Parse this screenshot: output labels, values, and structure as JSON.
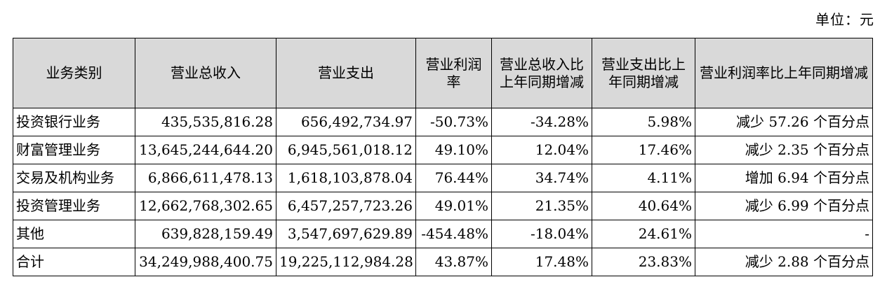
{
  "unit_label": "单位：元",
  "table": {
    "headers": [
      "业务类别",
      "营业总收入",
      "营业支出",
      "营业利润率",
      "营业总收入比上年同期增减",
      "营业支出比上年同期增减",
      "营业利润率比上年同期增减"
    ],
    "rows": [
      [
        "投资银行业务",
        "435,535,816.28",
        "656,492,734.97",
        "-50.73%",
        "-34.28%",
        "5.98%",
        "减少 57.26 个百分点"
      ],
      [
        "财富管理业务",
        "13,645,244,644.20",
        "6,945,561,018.12",
        "49.10%",
        "12.04%",
        "17.46%",
        "减少 2.35 个百分点"
      ],
      [
        "交易及机构业务",
        "6,866,611,478.13",
        "1,618,103,878.04",
        "76.44%",
        "34.74%",
        "4.11%",
        "增加 6.94 个百分点"
      ],
      [
        "投资管理业务",
        "12,662,768,302.65",
        "6,457,257,723.26",
        "49.01%",
        "21.35%",
        "40.64%",
        "减少 6.99 个百分点"
      ],
      [
        "其他",
        "639,828,159.49",
        "3,547,697,629.89",
        "-454.48%",
        "-18.04%",
        "24.61%",
        "-"
      ],
      [
        "合计",
        "34,249,988,400.75",
        "19,225,112,984.28",
        "43.87%",
        "17.48%",
        "23.83%",
        "减少 2.88 个百分点"
      ]
    ]
  }
}
